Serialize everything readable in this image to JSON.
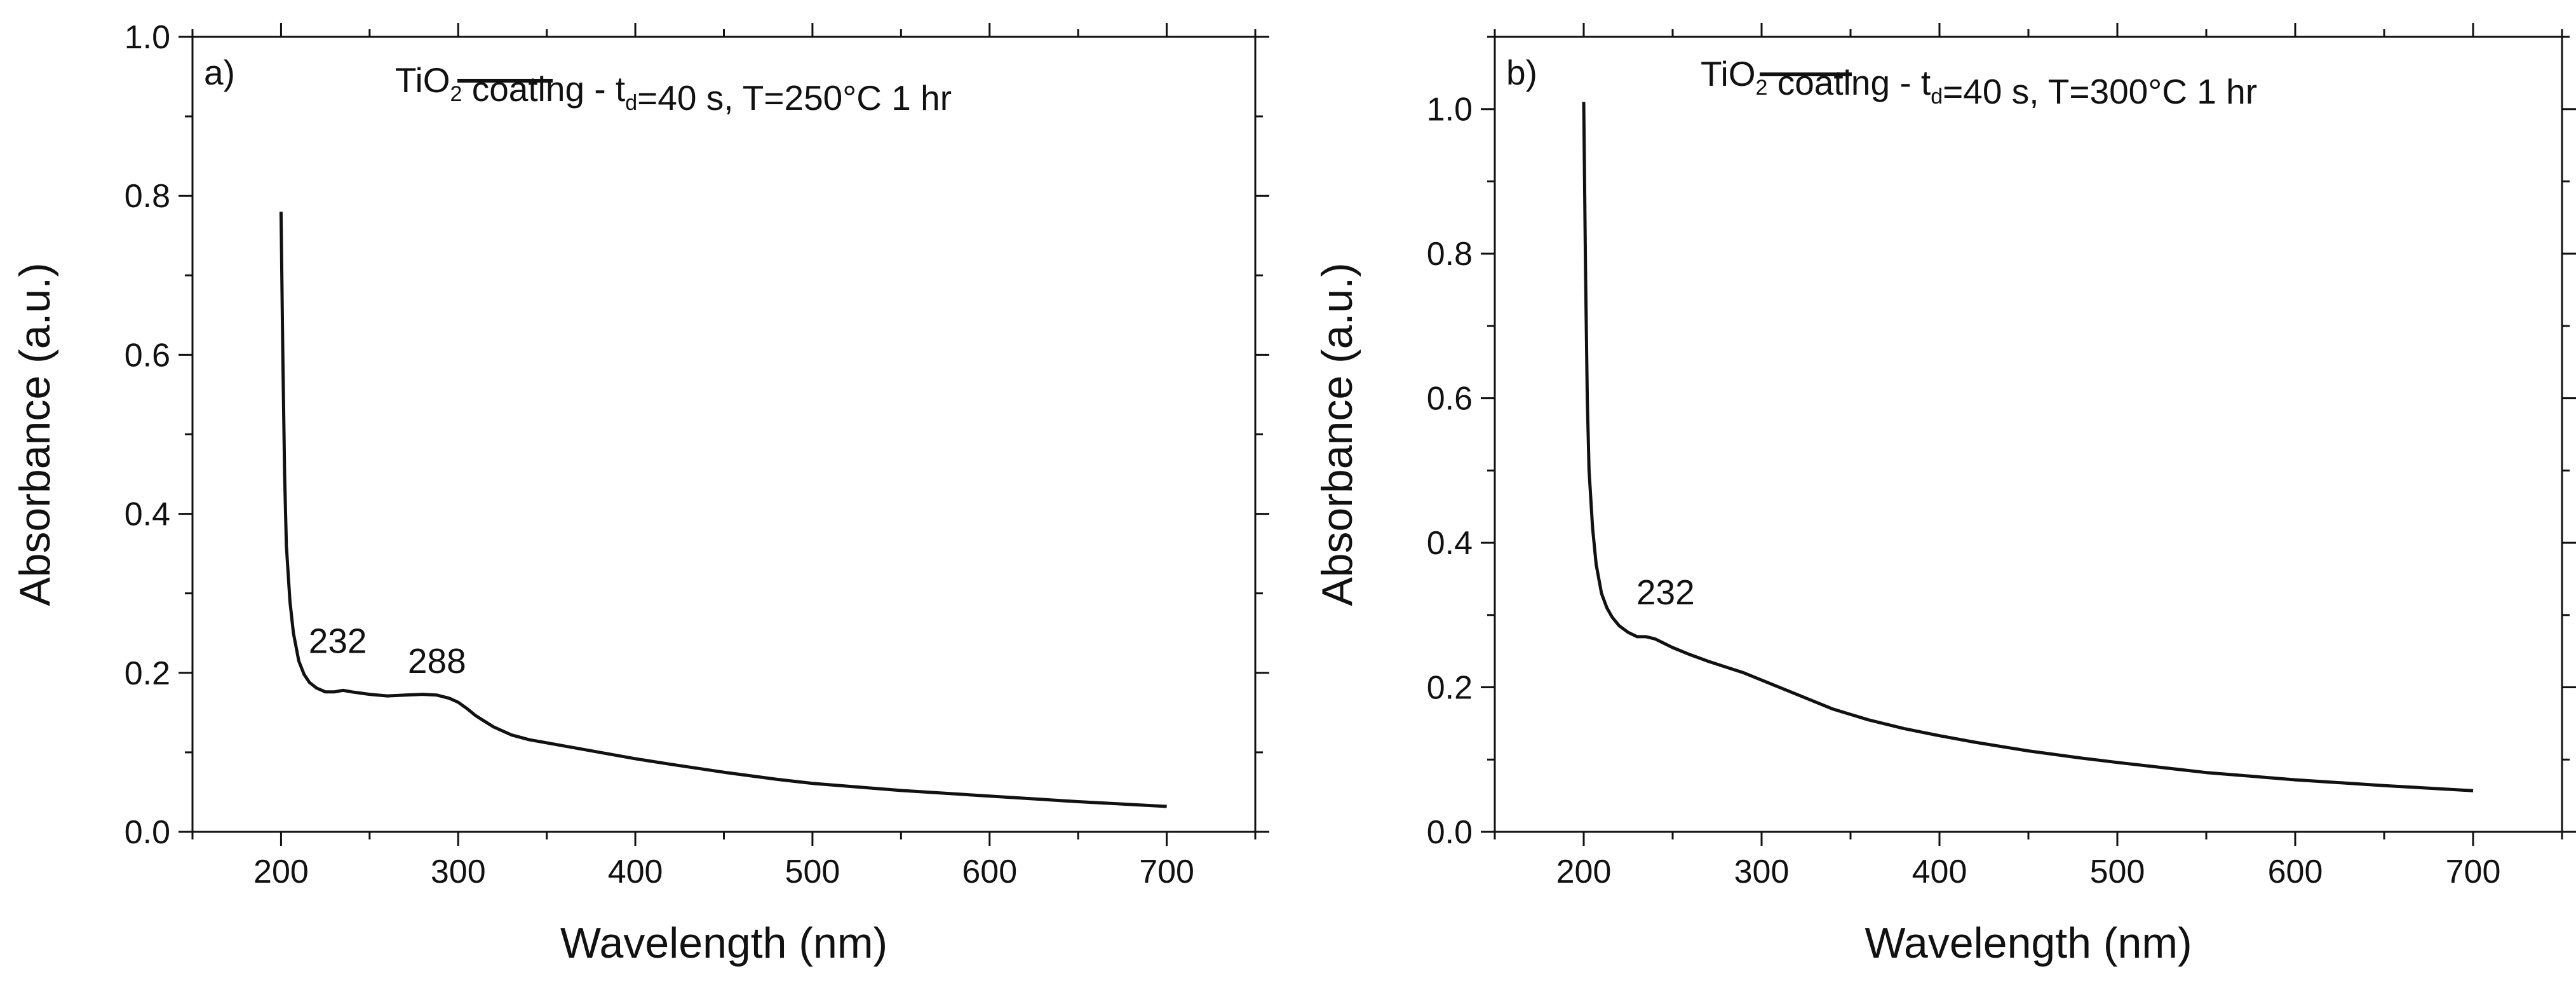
{
  "chart_data": [
    {
      "panel": "a)",
      "type": "line",
      "xlabel": "Wavelength (nm)",
      "ylabel": "Absorbance (a.u.)",
      "xlim": [
        150,
        750
      ],
      "ylim": [
        0.0,
        1.0
      ],
      "xticks": [
        200,
        300,
        400,
        500,
        600,
        700
      ],
      "xtick_labels": [
        "200",
        "300",
        "400",
        "500",
        "600",
        "700"
      ],
      "yticks": [
        0.0,
        0.2,
        0.4,
        0.6,
        0.8,
        1.0
      ],
      "ytick_labels": [
        "0.0",
        "0.2",
        "0.4",
        "0.6",
        "0.8",
        "1.0"
      ],
      "legend": {
        "pre": "TiO",
        "sub1": "2",
        "mid": " coating - t",
        "sub2": "d",
        "post": "=40 s, T=250°C 1 hr"
      },
      "annotations": [
        {
          "text": "232",
          "x": 232,
          "y": 0.225
        },
        {
          "text": "288",
          "x": 288,
          "y": 0.2
        }
      ],
      "series": [
        {
          "name": "TiO2 coating - td=40 s, T=250°C 1 hr",
          "x": [
            200,
            201,
            202,
            203,
            205,
            207,
            210,
            213,
            216,
            220,
            225,
            230,
            235,
            240,
            250,
            260,
            270,
            280,
            288,
            295,
            300,
            305,
            310,
            320,
            330,
            340,
            350,
            360,
            380,
            400,
            420,
            450,
            480,
            500,
            550,
            600,
            650,
            700
          ],
          "y": [
            0.78,
            0.6,
            0.45,
            0.36,
            0.29,
            0.25,
            0.215,
            0.198,
            0.188,
            0.181,
            0.176,
            0.176,
            0.178,
            0.176,
            0.173,
            0.171,
            0.172,
            0.173,
            0.172,
            0.168,
            0.163,
            0.155,
            0.146,
            0.132,
            0.122,
            0.116,
            0.112,
            0.108,
            0.1,
            0.092,
            0.085,
            0.075,
            0.066,
            0.061,
            0.052,
            0.045,
            0.038,
            0.032
          ]
        }
      ]
    },
    {
      "panel": "b)",
      "type": "line",
      "xlabel": "Wavelength (nm)",
      "ylabel": "Absorbance (a.u.)",
      "xlim": [
        150,
        750
      ],
      "ylim": [
        0.0,
        1.1
      ],
      "xticks": [
        200,
        300,
        400,
        500,
        600,
        700
      ],
      "xtick_labels": [
        "200",
        "300",
        "400",
        "500",
        "600",
        "700"
      ],
      "yticks": [
        0.0,
        0.2,
        0.4,
        0.6,
        0.8,
        1.0
      ],
      "ytick_labels": [
        "0.0",
        "0.2",
        "0.4",
        "0.6",
        "0.8",
        "1.0"
      ],
      "legend": {
        "pre": "TiO",
        "sub1": "2",
        "mid": " coating - t",
        "sub2": "d",
        "post": "=40 s, T=300°C 1 hr"
      },
      "annotations": [
        {
          "text": "232",
          "x": 246,
          "y": 0.315
        }
      ],
      "series": [
        {
          "name": "TiO2 coating - td=40 s, T=300°C 1 hr",
          "x": [
            200,
            201,
            202,
            203,
            205,
            207,
            210,
            213,
            216,
            220,
            225,
            230,
            235,
            240,
            250,
            260,
            270,
            280,
            290,
            300,
            320,
            340,
            360,
            380,
            400,
            420,
            450,
            480,
            500,
            550,
            600,
            650,
            700
          ],
          "y": [
            1.01,
            0.78,
            0.6,
            0.5,
            0.42,
            0.37,
            0.33,
            0.31,
            0.297,
            0.285,
            0.276,
            0.27,
            0.27,
            0.267,
            0.255,
            0.245,
            0.236,
            0.228,
            0.22,
            0.21,
            0.19,
            0.17,
            0.155,
            0.143,
            0.133,
            0.124,
            0.112,
            0.102,
            0.096,
            0.082,
            0.072,
            0.064,
            0.057
          ]
        }
      ]
    }
  ]
}
